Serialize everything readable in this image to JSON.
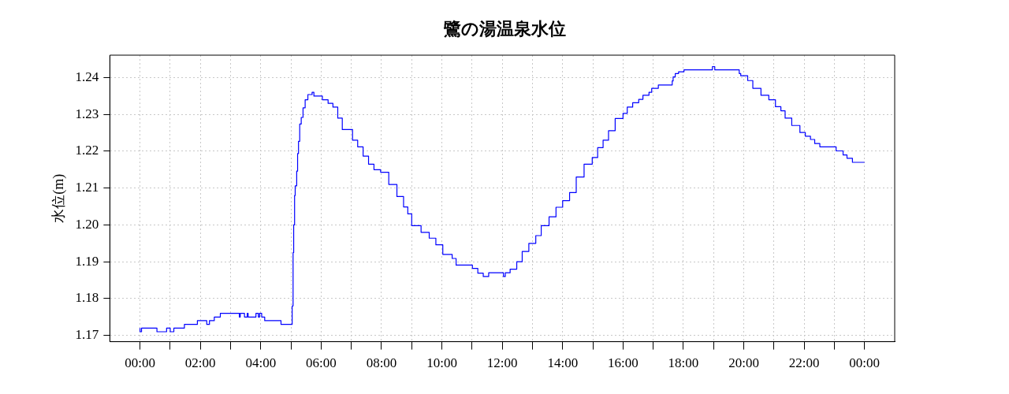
{
  "chart_data": {
    "type": "step",
    "title": "鷺の湯温泉水位",
    "ylabel": "水位(m)",
    "xlim": [
      -1,
      25
    ],
    "ylim": [
      1.1683,
      1.2461
    ],
    "xticks": [
      {
        "value": 0,
        "label": "00:00"
      },
      {
        "value": 1,
        "label": null
      },
      {
        "value": 2,
        "label": "02:00"
      },
      {
        "value": 3,
        "label": null
      },
      {
        "value": 4,
        "label": "04:00"
      },
      {
        "value": 5,
        "label": null
      },
      {
        "value": 6,
        "label": "06:00"
      },
      {
        "value": 7,
        "label": null
      },
      {
        "value": 8,
        "label": "08:00"
      },
      {
        "value": 9,
        "label": null
      },
      {
        "value": 10,
        "label": "10:00"
      },
      {
        "value": 11,
        "label": null
      },
      {
        "value": 12,
        "label": "12:00"
      },
      {
        "value": 13,
        "label": null
      },
      {
        "value": 14,
        "label": "14:00"
      },
      {
        "value": 15,
        "label": null
      },
      {
        "value": 16,
        "label": "16:00"
      },
      {
        "value": 17,
        "label": null
      },
      {
        "value": 18,
        "label": "18:00"
      },
      {
        "value": 19,
        "label": null
      },
      {
        "value": 20,
        "label": "20:00"
      },
      {
        "value": 21,
        "label": null
      },
      {
        "value": 22,
        "label": "22:00"
      },
      {
        "value": 23,
        "label": null
      },
      {
        "value": 24,
        "label": "00:00"
      }
    ],
    "yticks": [
      1.17,
      1.18,
      1.19,
      {
        "value": 1.2,
        "label": "1.20"
      },
      1.21,
      1.22,
      1.23,
      1.24
    ],
    "grid": true,
    "legend": false,
    "marker": "none",
    "line_style": "solid",
    "series": [
      {
        "color": "#0000ff",
        "x": [
          0,
          0.05,
          0.56,
          0.88,
          1.0,
          1.12,
          1.47,
          1.75,
          1.9,
          2.21,
          2.3,
          2.46,
          2.66,
          3.29,
          3.32,
          3.46,
          3.55,
          3.58,
          3.84,
          3.92,
          3.96,
          4.03,
          4.13,
          4.67,
          4.89,
          5.04,
          5.07,
          5.09,
          5.12,
          5.14,
          5.19,
          5.22,
          5.25,
          5.29,
          5.34,
          5.4,
          5.47,
          5.56,
          5.7,
          5.76,
          6.04,
          6.23,
          6.39,
          6.55,
          6.7,
          7.04,
          7.21,
          7.39,
          7.57,
          7.75,
          7.97,
          8.24,
          8.51,
          8.73,
          8.87,
          9.0,
          9.31,
          9.58,
          9.8,
          10.03,
          10.34,
          10.47,
          11.01,
          11.19,
          11.37,
          11.55,
          12.04,
          12.1,
          12.26,
          12.48,
          12.66,
          12.88,
          13.11,
          13.29,
          13.55,
          13.78,
          14.0,
          14.23,
          14.45,
          14.71,
          14.98,
          15.16,
          15.34,
          15.52,
          15.74,
          16.0,
          16.14,
          16.32,
          16.52,
          16.66,
          16.86,
          16.95,
          17.17,
          17.63,
          17.66,
          17.73,
          17.84,
          18.02,
          18.11,
          18.96,
          19.04,
          19.09,
          19.85,
          19.9,
          20.13,
          20.3,
          20.57,
          20.83,
          21.05,
          21.23,
          21.37,
          21.59,
          21.86,
          22.04,
          22.21,
          22.35,
          22.52,
          23.06,
          23.29,
          23.42,
          23.6,
          23.91,
          24.0
        ],
        "values": [
          1.172,
          1.171,
          1.172,
          1.171,
          1.172,
          1.171,
          1.172,
          1.173,
          1.173,
          1.174,
          1.173,
          1.174,
          1.175,
          1.176,
          1.175,
          1.176,
          1.175,
          1.176,
          1.175,
          1.176,
          1.175,
          1.176,
          1.175,
          1.174,
          1.173,
          1.173,
          1.178,
          1.1925,
          1.2,
          1.208,
          1.2106,
          1.2146,
          1.2194,
          1.2227,
          1.2274,
          1.2292,
          1.2318,
          1.234,
          1.2354,
          1.236,
          1.235,
          1.234,
          1.233,
          1.232,
          1.229,
          1.2259,
          1.223,
          1.2212,
          1.2187,
          1.2165,
          1.215,
          1.2143,
          1.211,
          1.2077,
          1.2049,
          1.203,
          1.1998,
          1.198,
          1.1964,
          1.1946,
          1.192,
          1.1909,
          1.1891,
          1.1882,
          1.1869,
          1.186,
          1.187,
          1.186,
          1.187,
          1.188,
          1.19,
          1.1928,
          1.195,
          1.1971,
          1.1998,
          1.2022,
          1.2048,
          1.2066,
          1.2088,
          1.213,
          1.2165,
          1.2183,
          1.221,
          1.223,
          1.2256,
          1.2289,
          1.2303,
          1.232,
          1.2332,
          1.2341,
          1.2352,
          1.236,
          1.2371,
          1.238,
          1.2391,
          1.2402,
          1.2411,
          1.2416,
          1.2421,
          1.2421,
          1.243,
          1.2421,
          1.2421,
          1.2411,
          1.2405,
          1.2392,
          1.2371,
          1.2352,
          1.234,
          1.2321,
          1.231,
          1.229,
          1.227,
          1.2251,
          1.2241,
          1.2232,
          1.2221,
          1.2212,
          1.2201,
          1.219,
          1.2181,
          1.217,
          1.217
        ]
      }
    ]
  }
}
